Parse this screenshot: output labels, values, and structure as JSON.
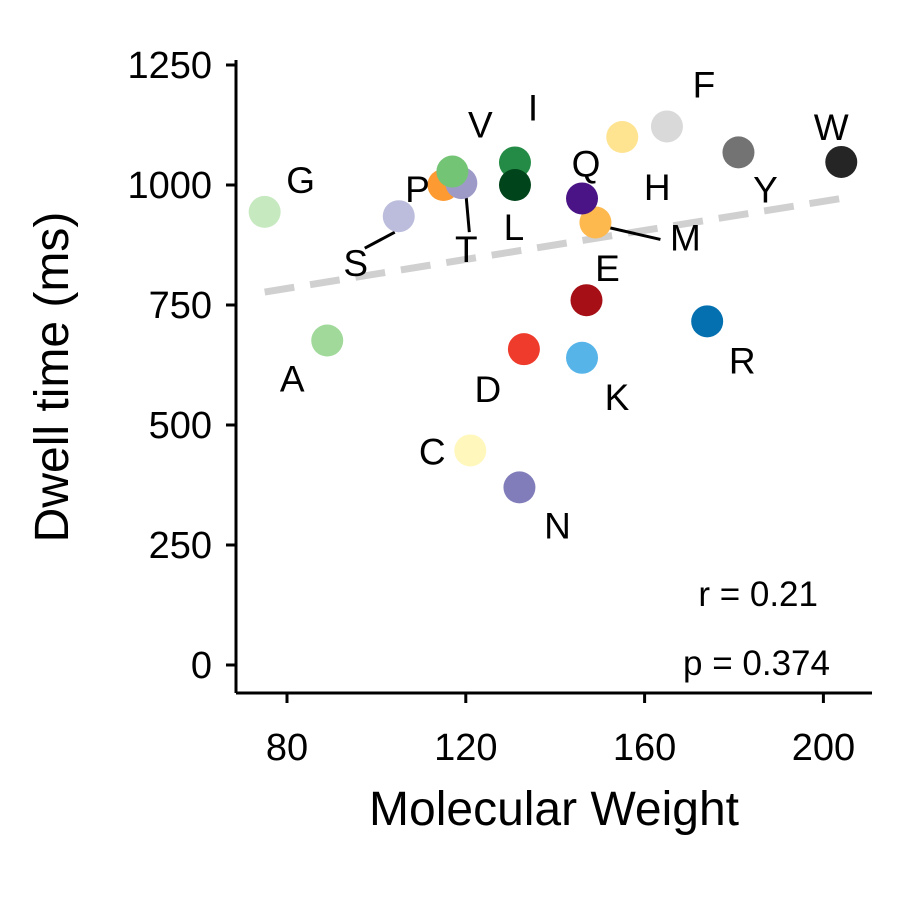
{
  "chart_data": {
    "type": "scatter",
    "xlabel": "Molecular Weight",
    "ylabel": "Dwell time (ms)",
    "xlim": [
      68,
      210
    ],
    "ylim": [
      -60,
      1290
    ],
    "x_ticks": [
      "80",
      "120",
      "160",
      "200"
    ],
    "y_ticks": [
      "0",
      "250",
      "500",
      "750",
      "1000",
      "1250"
    ],
    "grid": false,
    "points": [
      {
        "label": "A",
        "x": 89,
        "y": 676,
        "color": "#a1d99b"
      },
      {
        "label": "C",
        "x": 121,
        "y": 447,
        "color": "#fff7bc"
      },
      {
        "label": "D",
        "x": 133,
        "y": 658,
        "color": "#ef3b2c"
      },
      {
        "label": "E",
        "x": 147,
        "y": 760,
        "color": "#a50f15"
      },
      {
        "label": "F",
        "x": 165,
        "y": 1122,
        "color": "#d9d9d9"
      },
      {
        "label": "G",
        "x": 75,
        "y": 944,
        "color": "#c7e9c0"
      },
      {
        "label": "H",
        "x": 155,
        "y": 1100,
        "color": "#fee391"
      },
      {
        "label": "I",
        "x": 131,
        "y": 1047,
        "color": "#238b45"
      },
      {
        "label": "K",
        "x": 146,
        "y": 640,
        "color": "#56b4e9"
      },
      {
        "label": "L",
        "x": 131,
        "y": 1000,
        "color": "#00441b"
      },
      {
        "label": "M",
        "x": 149,
        "y": 922,
        "color": "#fdb84e"
      },
      {
        "label": "N",
        "x": 132,
        "y": 370,
        "color": "#807dba"
      },
      {
        "label": "P",
        "x": 115,
        "y": 1000,
        "color": "#fd9a31"
      },
      {
        "label": "Q",
        "x": 146,
        "y": 972,
        "color": "#4a1486"
      },
      {
        "label": "R",
        "x": 174,
        "y": 716,
        "color": "#0570b0"
      },
      {
        "label": "S",
        "x": 105,
        "y": 935,
        "color": "#bcbddc"
      },
      {
        "label": "T",
        "x": 119,
        "y": 1004,
        "color": "#9e9ac8"
      },
      {
        "label": "V",
        "x": 117,
        "y": 1028,
        "color": "#74c476"
      },
      {
        "label": "W",
        "x": 204,
        "y": 1048,
        "color": "#252525"
      },
      {
        "label": "Y",
        "x": 181,
        "y": 1068,
        "color": "#737373"
      }
    ],
    "trend_line": {
      "x": [
        75,
        204
      ],
      "y": [
        777,
        972
      ],
      "color": "#d0d0d0",
      "style": "dashed"
    },
    "stats": {
      "r": "r = 0.21",
      "p": "p = 0.374"
    }
  }
}
